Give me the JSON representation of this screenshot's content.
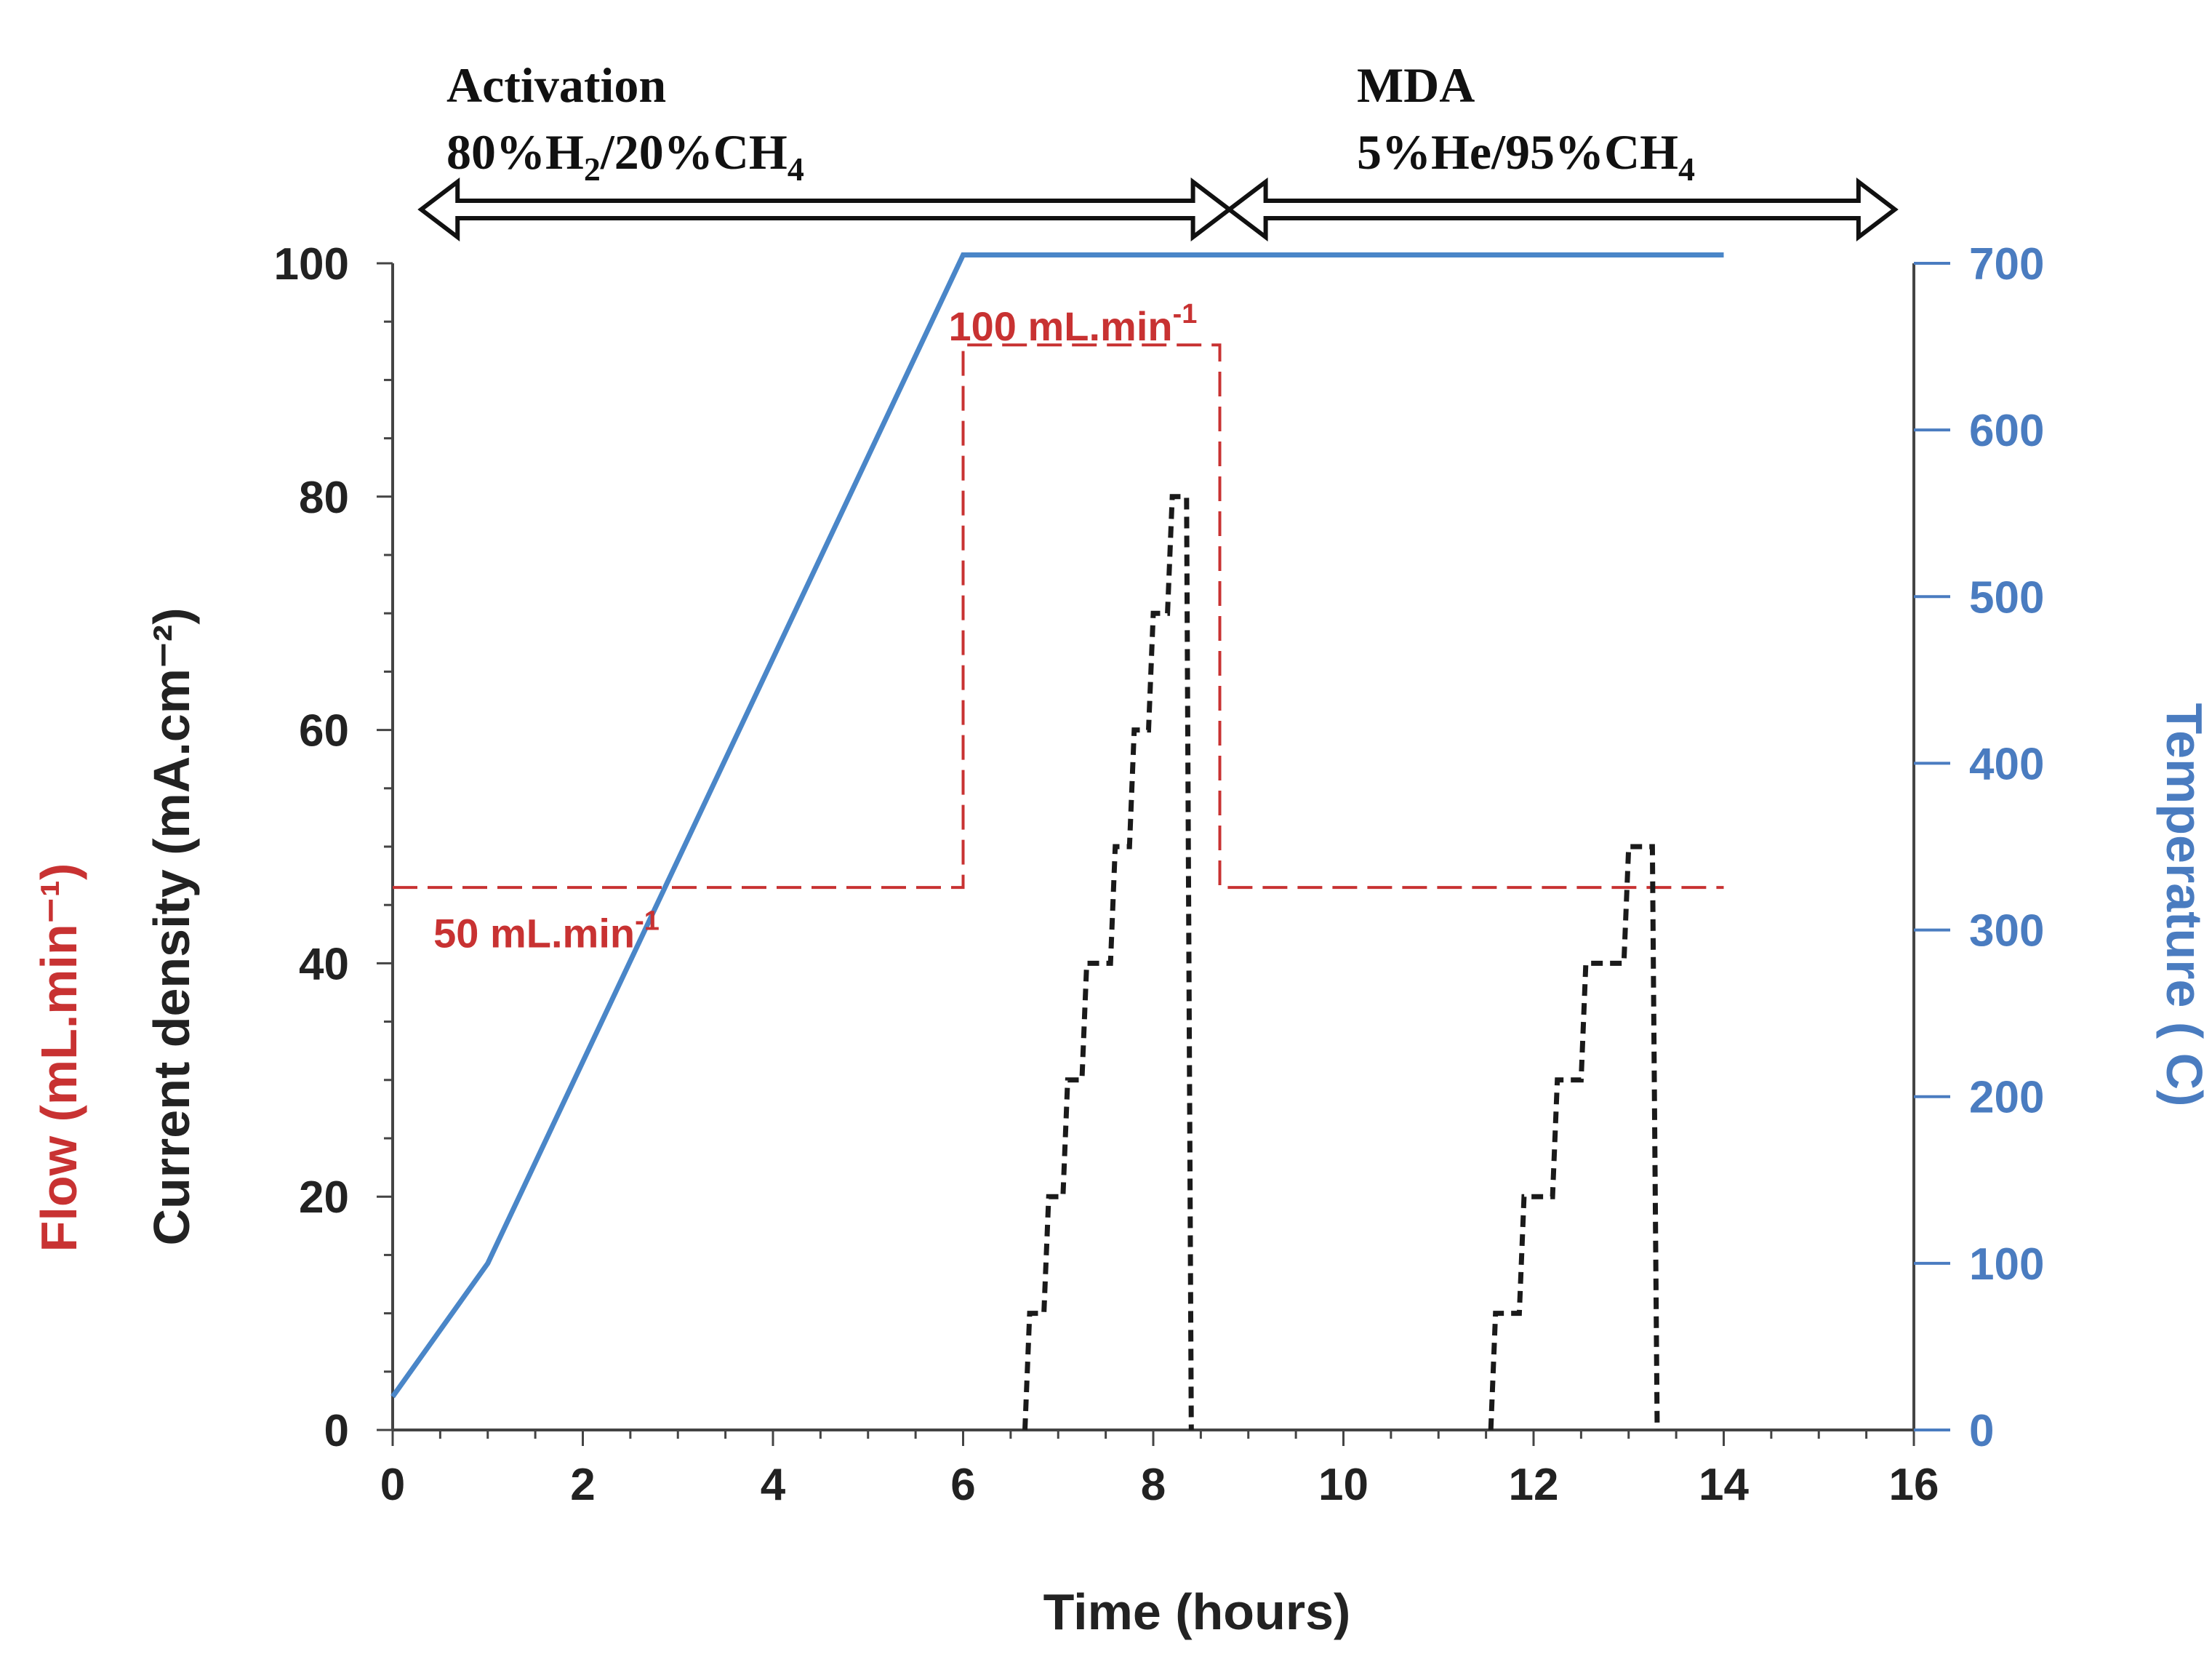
{
  "chart_data": {
    "type": "line",
    "title": "",
    "xlabel": "Time (hours)",
    "ylabel_left": "Current density (mA.cm⁻²)",
    "ylabel_left_flow": "Flow (mL.min⁻¹)",
    "ylabel_right": "Temperature ( C)",
    "xlim": [
      0,
      16
    ],
    "ylim_left": [
      0,
      100
    ],
    "ylim_right": [
      0,
      700
    ],
    "x_ticks": [
      0,
      2,
      4,
      6,
      8,
      10,
      12,
      14,
      16
    ],
    "y_left_ticks": [
      0,
      20,
      40,
      60,
      80,
      100
    ],
    "y_right_ticks": [
      0,
      100,
      200,
      300,
      400,
      500,
      600,
      700
    ],
    "grid": false,
    "phases": [
      {
        "name": "Activation",
        "gas_prefix": "80%H",
        "gas_sub1": "2",
        "gas_mid": "/20%CH",
        "gas_sub2": "4",
        "start": 0.3,
        "end": 8.8
      },
      {
        "name": "MDA",
        "gas_prefix": "5%He/95%CH",
        "gas_sub1": "4",
        "gas_mid": "",
        "gas_sub2": "",
        "start": 8.8,
        "end": 15.8
      }
    ],
    "annotations": [
      {
        "text": "100 mL.min",
        "sup": "-1",
        "x": 6.0,
        "y": 95
      },
      {
        "text": "50 mL.min",
        "sup": "-1",
        "x": 0.2,
        "y": 43
      }
    ],
    "colors": {
      "temperature": "#4a86c8",
      "flow": "#c83232",
      "current": "#1a1a1a",
      "right_axis": "#4a7cc0",
      "left_axis": "#222222"
    },
    "series": [
      {
        "name": "Temperature",
        "axis": "right",
        "style": "solid",
        "x": [
          0,
          1,
          6,
          14
        ],
        "y": [
          20,
          100,
          705,
          705
        ]
      },
      {
        "name": "Flow",
        "axis": "left",
        "style": "dashed",
        "x": [
          0,
          6,
          6,
          8.7,
          8.7,
          14
        ],
        "y": [
          46.5,
          46.5,
          93,
          93,
          46.5,
          46.5
        ]
      },
      {
        "name": "Current density (run 1)",
        "axis": "left",
        "style": "dashed",
        "x": [
          6.65,
          6.7,
          6.85,
          6.9,
          7.05,
          7.1,
          7.25,
          7.3,
          7.55,
          7.6,
          7.75,
          7.8,
          7.95,
          8.0,
          8.15,
          8.2,
          8.35,
          8.4
        ],
        "y": [
          0,
          10,
          10,
          20,
          20,
          30,
          30,
          40,
          40,
          50,
          50,
          60,
          60,
          70,
          70,
          80,
          80,
          0
        ]
      },
      {
        "name": "Current density (run 2)",
        "axis": "left",
        "style": "dashed",
        "x": [
          11.55,
          11.6,
          11.85,
          11.9,
          12.2,
          12.25,
          12.5,
          12.55,
          12.95,
          13.0,
          13.25,
          13.3
        ],
        "y": [
          0,
          10,
          10,
          20,
          20,
          30,
          30,
          40,
          40,
          50,
          50,
          0
        ]
      }
    ]
  }
}
